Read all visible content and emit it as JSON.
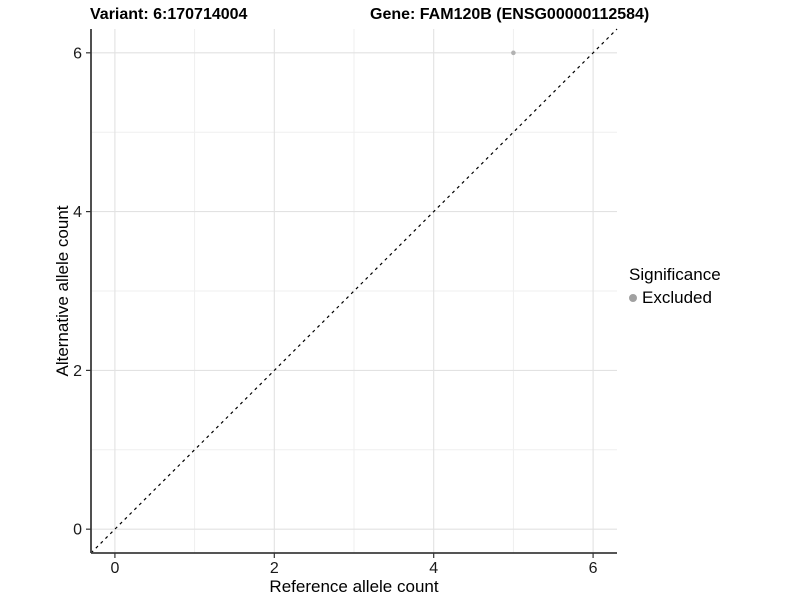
{
  "header": {
    "variant_title": "Variant: 6:170714004",
    "gene_title": "Gene: FAM120B (ENSG00000112584)"
  },
  "chart_data": {
    "type": "scatter",
    "title": "",
    "xlabel": "Reference allele count",
    "ylabel": "Alternative allele count",
    "xlim": [
      -0.3,
      6.3
    ],
    "ylim": [
      -0.3,
      6.3
    ],
    "x_major_ticks": [
      0,
      2,
      4,
      6
    ],
    "y_major_ticks": [
      0,
      2,
      4,
      6
    ],
    "x_minor_ticks": [
      1,
      3,
      5
    ],
    "y_minor_ticks": [
      1,
      3,
      5
    ],
    "grid": true,
    "identity_line": {
      "style": "dashed",
      "from_xy": [
        -0.3,
        -0.3
      ],
      "to_xy": [
        6.3,
        6.3
      ],
      "color": "#000000"
    },
    "series": [
      {
        "name": "Excluded",
        "color": "#b2b2b2",
        "points": [
          {
            "x": 5,
            "y": 6
          }
        ]
      }
    ],
    "legend": {
      "title": "Significance",
      "position": "right",
      "items": [
        {
          "label": "Excluded",
          "color": "#a1a1a1"
        }
      ]
    }
  },
  "colors": {
    "background": "#ffffff",
    "grid_major": "#e2e2e2",
    "grid_minor": "#efefef",
    "axis_line": "#3d3d3d",
    "tick_mark": "#333333",
    "tick_label": "#1a1a1a"
  }
}
